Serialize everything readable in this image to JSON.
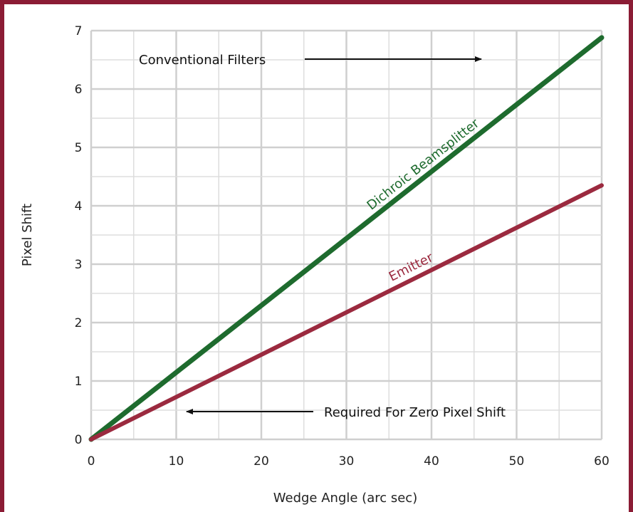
{
  "chart_data": {
    "type": "line",
    "xlabel": "Wedge Angle (arc sec)",
    "ylabel": "Pixel Shift",
    "xlim": [
      0,
      60
    ],
    "ylim": [
      0,
      7
    ],
    "xticks": [
      0,
      10,
      20,
      30,
      40,
      50,
      60
    ],
    "yticks": [
      0,
      1,
      2,
      3,
      4,
      5,
      6,
      7
    ],
    "grid": true,
    "series": [
      {
        "name": "Dichroic Beamsplitter",
        "color": "#1e6b2e",
        "x": [
          0,
          60
        ],
        "y": [
          0,
          6.88
        ]
      },
      {
        "name": "Emitter",
        "color": "#9b2a3f",
        "x": [
          0,
          60
        ],
        "y": [
          0,
          4.35
        ]
      }
    ],
    "annotations": [
      {
        "text": "Conventional Filters",
        "arrow": "right"
      },
      {
        "text": "Required For Zero Pixel Shift",
        "arrow": "left"
      }
    ]
  }
}
